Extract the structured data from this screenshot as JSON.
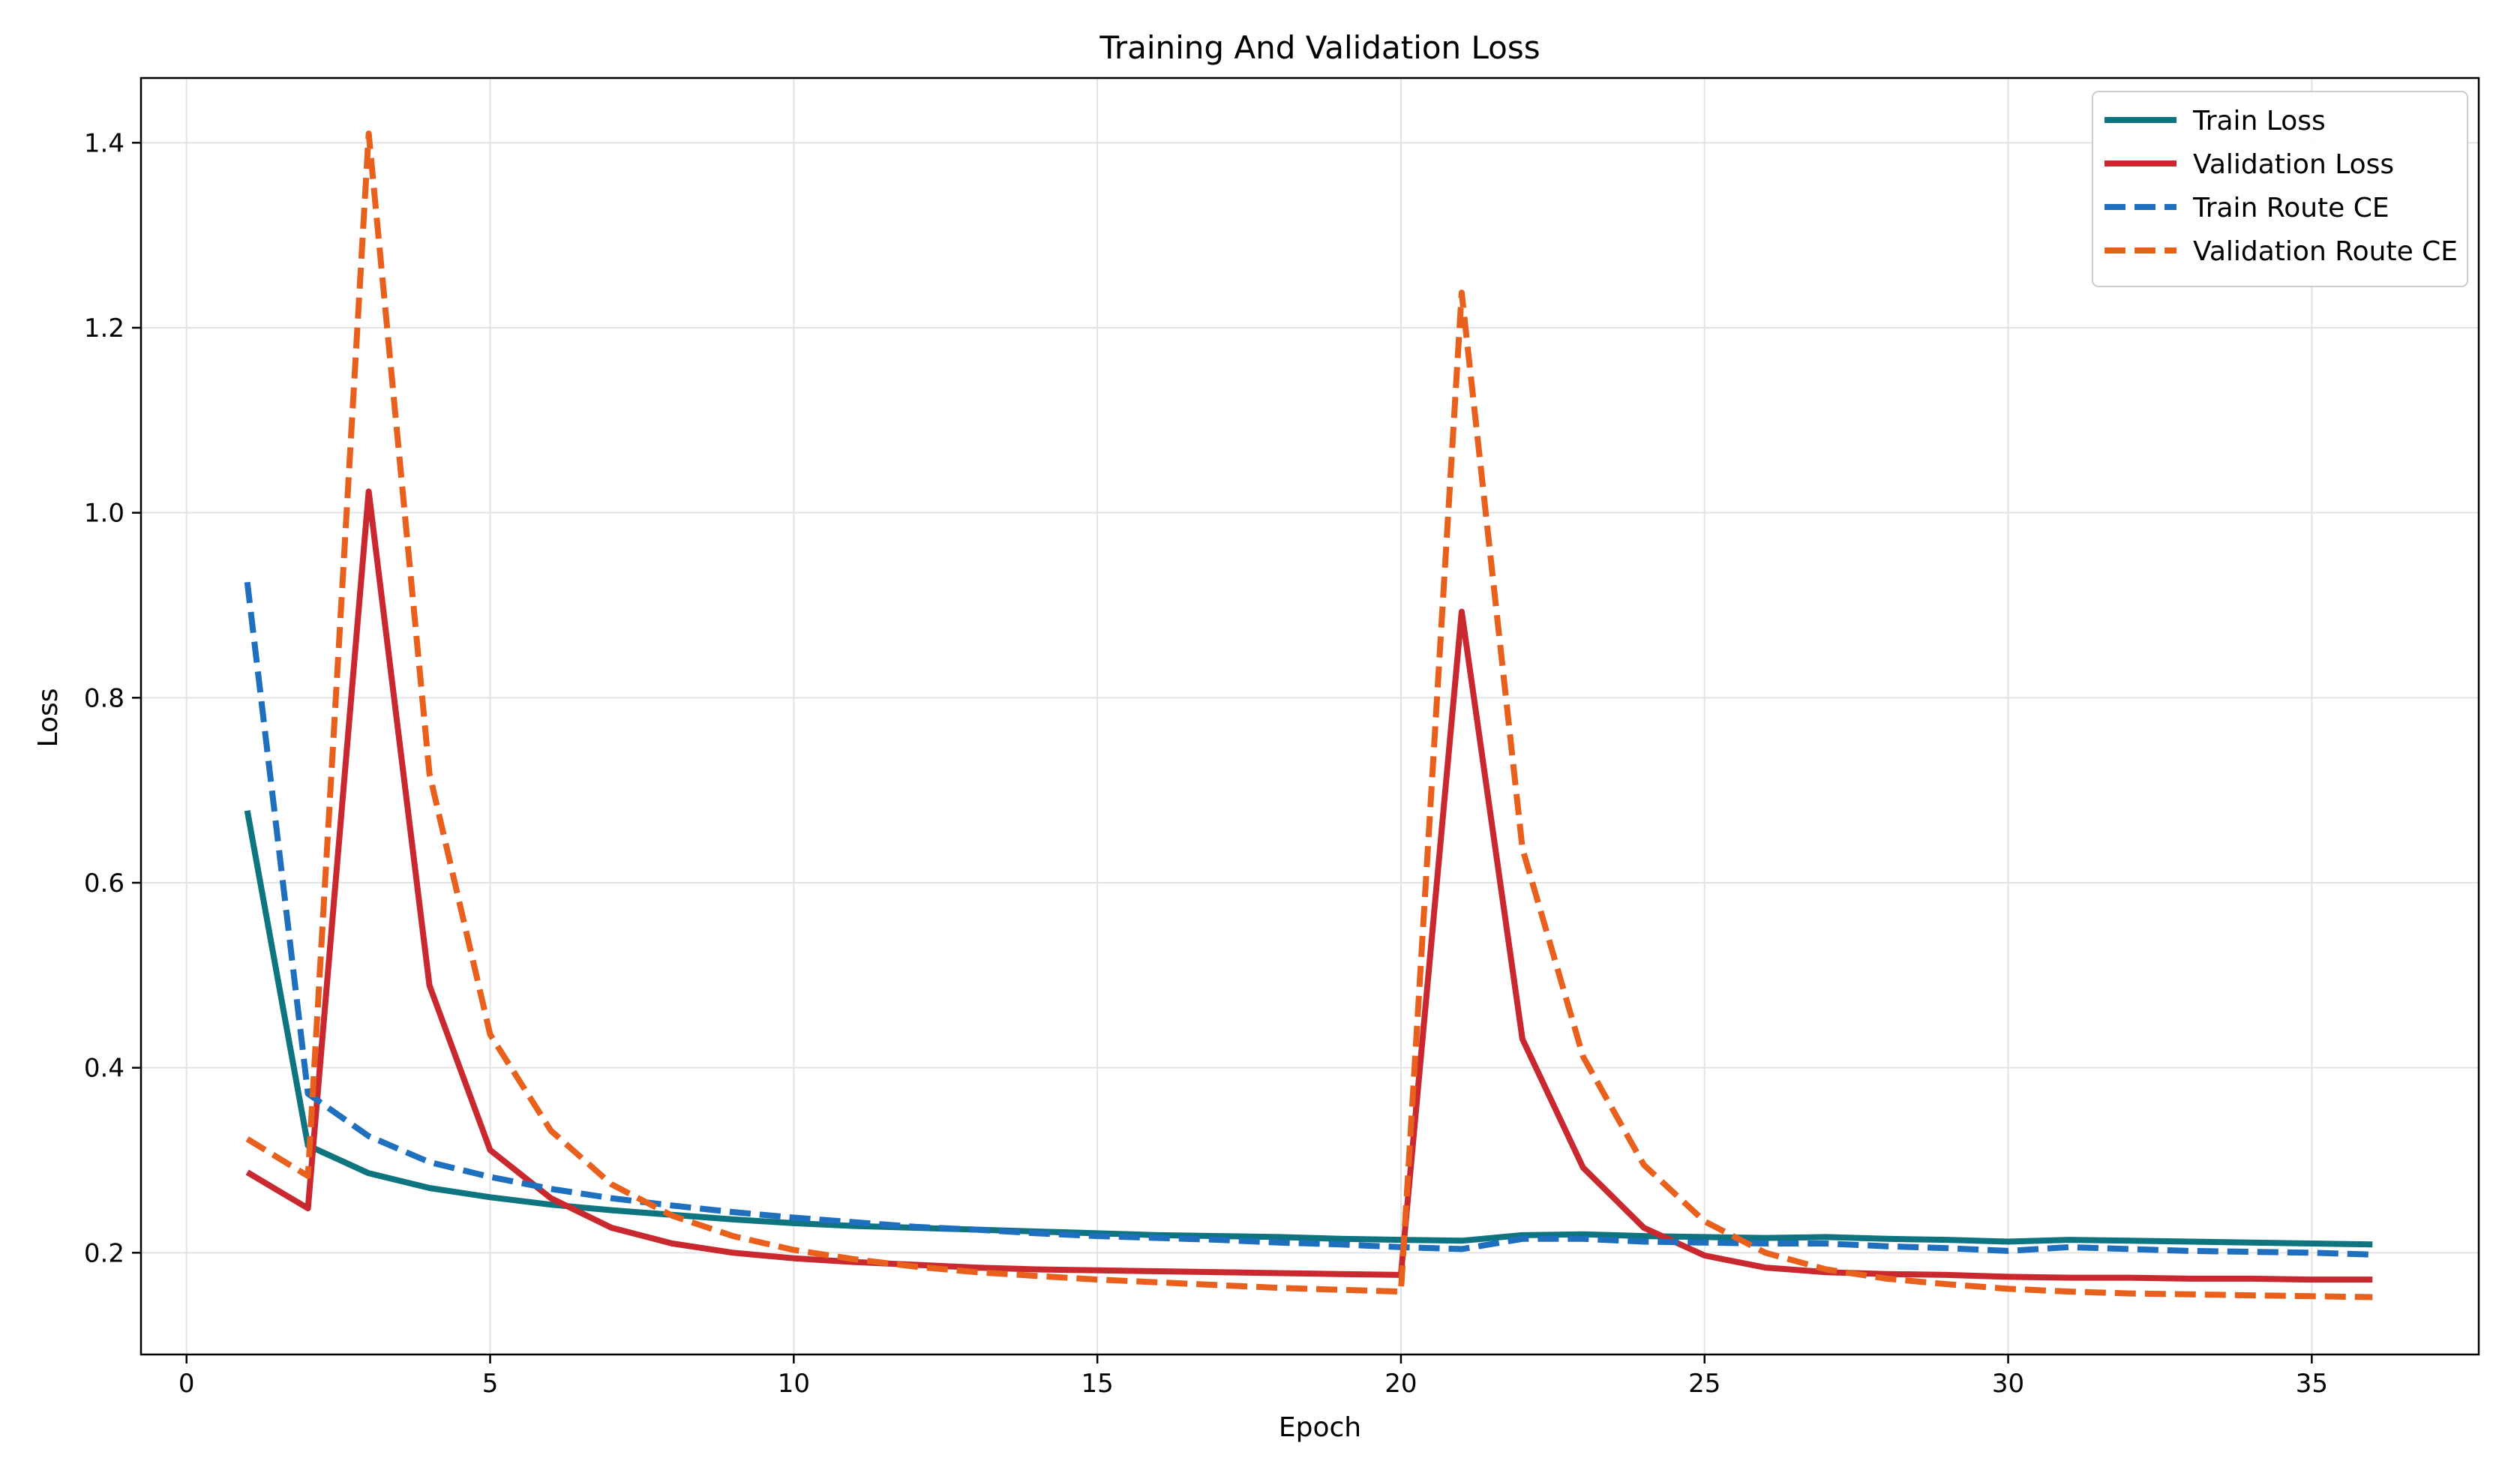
{
  "chart_data": {
    "type": "line",
    "title": "Training And Validation Loss",
    "xlabel": "Epoch",
    "ylabel": "Loss",
    "xlim": [
      -0.75,
      37.75
    ],
    "ylim": [
      0.09,
      1.47
    ],
    "xticks": [
      0,
      5,
      10,
      15,
      20,
      25,
      30,
      35
    ],
    "yticks": [
      0.2,
      0.4,
      0.6,
      0.8,
      1.0,
      1.2,
      1.4
    ],
    "ytick_labels": [
      "0.2",
      "0.4",
      "0.6",
      "0.8",
      "1.0",
      "1.2",
      "1.4"
    ],
    "grid": true,
    "legend_position": "top-right",
    "x": [
      1,
      2,
      3,
      4,
      5,
      6,
      7,
      8,
      9,
      10,
      11,
      12,
      13,
      14,
      15,
      16,
      17,
      18,
      19,
      20,
      21,
      22,
      23,
      24,
      25,
      26,
      27,
      28,
      29,
      30,
      31,
      32,
      33,
      34,
      35,
      36
    ],
    "series": [
      {
        "name": "Train Loss",
        "color": "#0d7480",
        "dashed": false,
        "values": [
          0.678,
          0.316,
          0.286,
          0.27,
          0.26,
          0.252,
          0.246,
          0.241,
          0.236,
          0.232,
          0.229,
          0.227,
          0.225,
          0.223,
          0.221,
          0.219,
          0.218,
          0.217,
          0.215,
          0.214,
          0.213,
          0.219,
          0.22,
          0.218,
          0.217,
          0.216,
          0.217,
          0.215,
          0.214,
          0.212,
          0.214,
          0.213,
          0.212,
          0.211,
          0.21,
          0.209
        ]
      },
      {
        "name": "Validation Loss",
        "color": "#c9292e",
        "dashed": false,
        "values": [
          0.287,
          0.248,
          1.023,
          0.489,
          0.311,
          0.259,
          0.227,
          0.21,
          0.2,
          0.194,
          0.19,
          0.187,
          0.184,
          0.182,
          0.181,
          0.18,
          0.179,
          0.178,
          0.177,
          0.176,
          0.893,
          0.431,
          0.292,
          0.227,
          0.197,
          0.184,
          0.179,
          0.177,
          0.176,
          0.174,
          0.173,
          0.173,
          0.172,
          0.172,
          0.171,
          0.171
        ]
      },
      {
        "name": "Train Route CE",
        "color": "#1f6fbf",
        "dashed": true,
        "values": [
          0.925,
          0.372,
          0.326,
          0.298,
          0.282,
          0.269,
          0.259,
          0.251,
          0.244,
          0.238,
          0.233,
          0.228,
          0.225,
          0.221,
          0.218,
          0.216,
          0.214,
          0.211,
          0.209,
          0.206,
          0.204,
          0.215,
          0.215,
          0.212,
          0.211,
          0.21,
          0.21,
          0.207,
          0.205,
          0.202,
          0.206,
          0.204,
          0.202,
          0.201,
          0.2,
          0.198
        ]
      },
      {
        "name": "Validation Route CE",
        "color": "#e8601c",
        "dashed": true,
        "values": [
          0.323,
          0.283,
          1.41,
          0.718,
          0.436,
          0.332,
          0.274,
          0.24,
          0.218,
          0.203,
          0.193,
          0.185,
          0.179,
          0.175,
          0.171,
          0.168,
          0.165,
          0.162,
          0.16,
          0.158,
          1.238,
          0.637,
          0.412,
          0.295,
          0.234,
          0.2,
          0.182,
          0.172,
          0.166,
          0.161,
          0.158,
          0.156,
          0.155,
          0.154,
          0.153,
          0.152
        ]
      }
    ]
  }
}
